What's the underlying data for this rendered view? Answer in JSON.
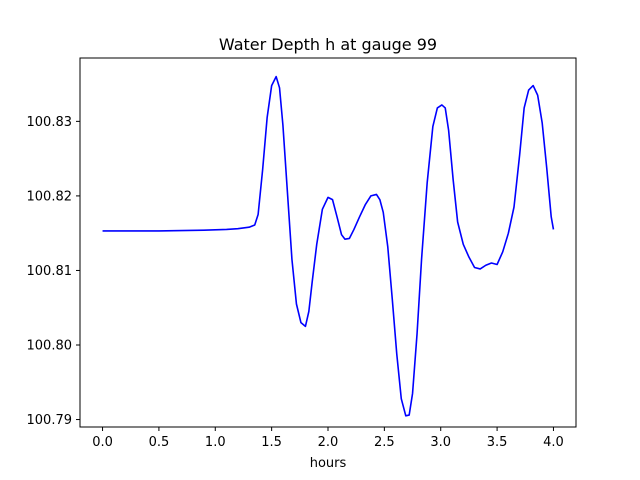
{
  "chart_data": {
    "type": "line",
    "title": "Water Depth h at gauge 99",
    "xlabel": "hours",
    "ylabel": "",
    "xlim": [
      -0.2,
      4.2
    ],
    "ylim": [
      100.789,
      100.8385
    ],
    "xticks": [
      0.0,
      0.5,
      1.0,
      1.5,
      2.0,
      2.5,
      3.0,
      3.5,
      4.0
    ],
    "xtick_labels": [
      "0.0",
      "0.5",
      "1.0",
      "1.5",
      "2.0",
      "2.5",
      "3.0",
      "3.5",
      "4.0"
    ],
    "yticks": [
      100.79,
      100.8,
      100.81,
      100.82,
      100.83
    ],
    "ytick_labels": [
      "100.79",
      "100.80",
      "100.81",
      "100.82",
      "100.83"
    ],
    "grid": false,
    "series": [
      {
        "color": "#0000ff",
        "x": [
          0.0,
          0.5,
          0.9,
          1.1,
          1.2,
          1.3,
          1.35,
          1.38,
          1.42,
          1.46,
          1.5,
          1.54,
          1.57,
          1.6,
          1.64,
          1.68,
          1.72,
          1.76,
          1.8,
          1.83,
          1.86,
          1.9,
          1.95,
          2.0,
          2.04,
          2.08,
          2.12,
          2.15,
          2.19,
          2.23,
          2.28,
          2.33,
          2.38,
          2.43,
          2.46,
          2.49,
          2.53,
          2.57,
          2.61,
          2.65,
          2.69,
          2.72,
          2.75,
          2.79,
          2.83,
          2.88,
          2.93,
          2.97,
          3.01,
          3.04,
          3.07,
          3.11,
          3.15,
          3.2,
          3.25,
          3.3,
          3.35,
          3.4,
          3.45,
          3.5,
          3.55,
          3.6,
          3.65,
          3.7,
          3.74,
          3.78,
          3.82,
          3.86,
          3.9,
          3.94,
          3.98,
          4.0
        ],
        "y": [
          100.8153,
          100.8153,
          100.8154,
          100.8155,
          100.8156,
          100.8158,
          100.8161,
          100.8175,
          100.8235,
          100.8305,
          100.8348,
          100.836,
          100.8345,
          100.8295,
          100.8205,
          100.8115,
          100.8055,
          100.803,
          100.8025,
          100.8045,
          100.8085,
          100.8135,
          100.8182,
          100.8198,
          100.8195,
          100.8172,
          100.8148,
          100.8142,
          100.8143,
          100.8155,
          100.8172,
          100.8188,
          100.82,
          100.8202,
          100.8195,
          100.8178,
          100.8132,
          100.8062,
          100.7988,
          100.7928,
          100.7905,
          100.7906,
          100.7935,
          100.8015,
          100.8115,
          100.8218,
          100.8293,
          100.8318,
          100.8322,
          100.8318,
          100.8288,
          100.8222,
          100.8165,
          100.8135,
          100.8118,
          100.8104,
          100.8102,
          100.8107,
          100.811,
          100.8108,
          100.8125,
          100.815,
          100.8185,
          100.8255,
          100.8318,
          100.8342,
          100.8348,
          100.8335,
          100.8298,
          100.8238,
          100.8172,
          100.8155
        ]
      }
    ]
  }
}
